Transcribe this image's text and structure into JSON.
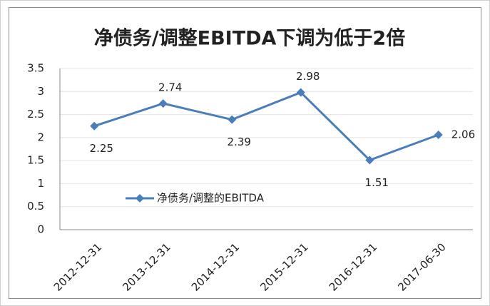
{
  "chart_data": {
    "type": "line",
    "title": "净债务/调整EBITDA下调为低于2倍",
    "categories": [
      "2012-12-31",
      "2013-12-31",
      "2014-12-31",
      "2015-12-31",
      "2016-12-31",
      "2017-06-30"
    ],
    "series": [
      {
        "name": "净债务/调整的EBITDA",
        "color": "#4a7ebb",
        "values": [
          2.25,
          2.74,
          2.39,
          2.98,
          1.51,
          2.06
        ]
      }
    ],
    "ylim": [
      0,
      3.5
    ],
    "yticks": [
      0,
      0.5,
      1,
      1.5,
      2,
      2.5,
      3,
      3.5
    ],
    "grid": true,
    "data_labels": true
  }
}
